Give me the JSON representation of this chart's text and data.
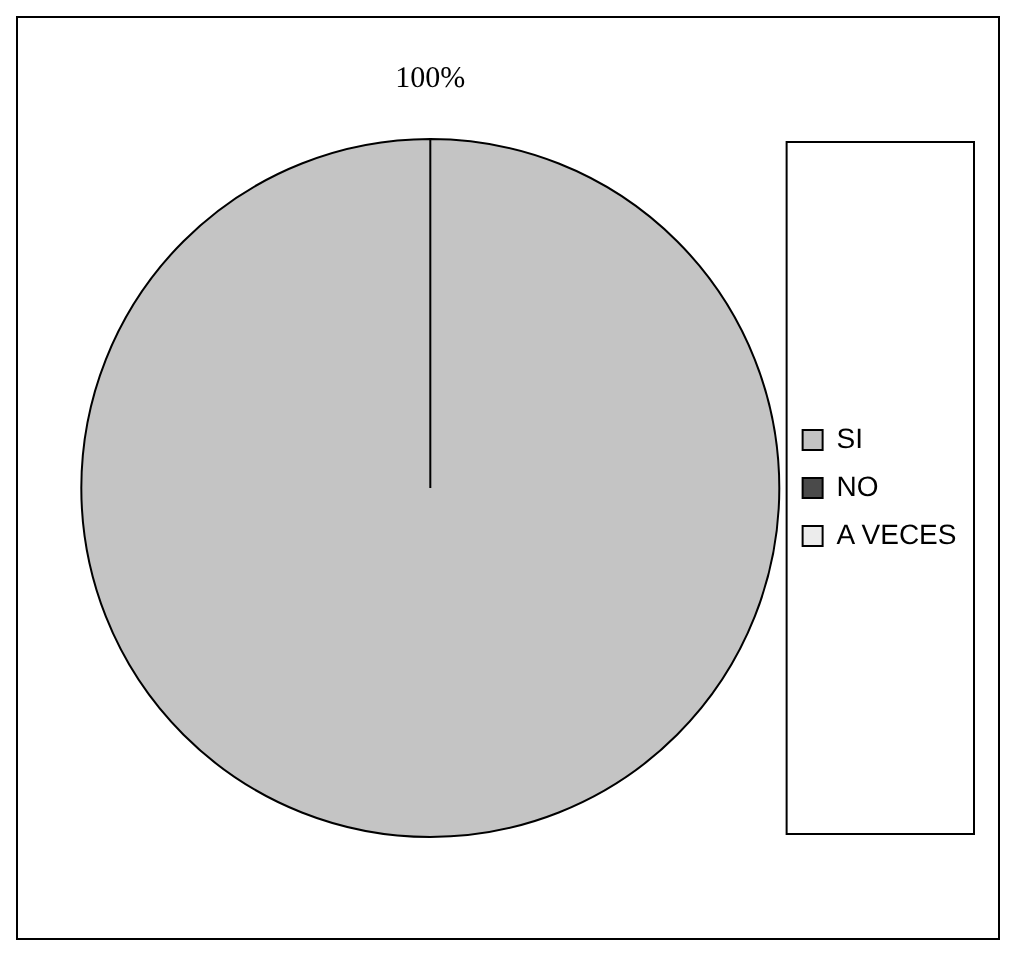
{
  "chart_data": {
    "type": "pie",
    "categories": [
      "SI",
      "NO",
      "A VECES"
    ],
    "values": [
      100,
      0,
      0
    ],
    "colors": [
      "#c4c4c4",
      "#4a4a4a",
      "#ececec"
    ],
    "value_labels": [
      "100%",
      null,
      null
    ],
    "legend": "right"
  }
}
